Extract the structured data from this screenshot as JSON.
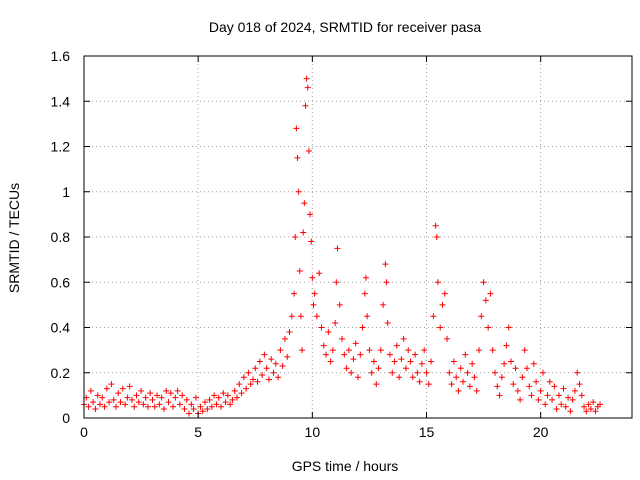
{
  "chart_data": {
    "type": "scatter",
    "title": "Day 018 of 2024, SRMTID for receiver pasa",
    "xlabel": "GPS time / hours",
    "ylabel": "SRMTID / TECUs",
    "xlim": [
      0,
      24
    ],
    "ylim": [
      0,
      1.6
    ],
    "xticks": [
      0,
      5,
      10,
      15,
      20
    ],
    "xtick_labels": [
      "0",
      "5",
      "10",
      "15",
      "20"
    ],
    "yticks": [
      0,
      0.2,
      0.4,
      0.6,
      0.8,
      1,
      1.2,
      1.4,
      1.6
    ],
    "ytick_labels": [
      "0",
      "0.2",
      "0.4",
      "0.6",
      "0.8",
      "1",
      "1.2",
      "1.4",
      "1.6"
    ],
    "grid": true,
    "marker": "+",
    "color": "#ff0000",
    "series": [
      {
        "name": "SRMTID",
        "points": [
          [
            0.0,
            0.06
          ],
          [
            0.1,
            0.09
          ],
          [
            0.2,
            0.05
          ],
          [
            0.3,
            0.12
          ],
          [
            0.4,
            0.07
          ],
          [
            0.5,
            0.04
          ],
          [
            0.6,
            0.1
          ],
          [
            0.7,
            0.06
          ],
          [
            0.8,
            0.09
          ],
          [
            0.9,
            0.05
          ],
          [
            1.0,
            0.13
          ],
          [
            1.1,
            0.07
          ],
          [
            1.2,
            0.15
          ],
          [
            1.3,
            0.08
          ],
          [
            1.4,
            0.05
          ],
          [
            1.5,
            0.11
          ],
          [
            1.6,
            0.07
          ],
          [
            1.7,
            0.13
          ],
          [
            1.8,
            0.06
          ],
          [
            1.9,
            0.09
          ],
          [
            2.0,
            0.14
          ],
          [
            2.1,
            0.08
          ],
          [
            2.2,
            0.05
          ],
          [
            2.3,
            0.1
          ],
          [
            2.4,
            0.07
          ],
          [
            2.5,
            0.12
          ],
          [
            2.6,
            0.06
          ],
          [
            2.7,
            0.09
          ],
          [
            2.8,
            0.05
          ],
          [
            2.9,
            0.11
          ],
          [
            3.0,
            0.08
          ],
          [
            3.1,
            0.05
          ],
          [
            3.2,
            0.1
          ],
          [
            3.3,
            0.06
          ],
          [
            3.4,
            0.09
          ],
          [
            3.5,
            0.04
          ],
          [
            3.6,
            0.12
          ],
          [
            3.7,
            0.07
          ],
          [
            3.8,
            0.11
          ],
          [
            3.9,
            0.05
          ],
          [
            4.0,
            0.09
          ],
          [
            4.1,
            0.12
          ],
          [
            4.2,
            0.06
          ],
          [
            4.3,
            0.1
          ],
          [
            4.4,
            0.04
          ],
          [
            4.5,
            0.08
          ],
          [
            4.6,
            0.02
          ],
          [
            4.7,
            0.06
          ],
          [
            4.8,
            0.04
          ],
          [
            4.9,
            0.09
          ],
          [
            5.0,
            0.02
          ],
          [
            5.1,
            0.05
          ],
          [
            5.2,
            0.03
          ],
          [
            5.3,
            0.07
          ],
          [
            5.4,
            0.04
          ],
          [
            5.5,
            0.08
          ],
          [
            5.6,
            0.05
          ],
          [
            5.7,
            0.1
          ],
          [
            5.8,
            0.06
          ],
          [
            5.9,
            0.09
          ],
          [
            6.0,
            0.05
          ],
          [
            6.1,
            0.11
          ],
          [
            6.2,
            0.07
          ],
          [
            6.3,
            0.1
          ],
          [
            6.4,
            0.06
          ],
          [
            6.5,
            0.08
          ],
          [
            6.6,
            0.12
          ],
          [
            6.7,
            0.09
          ],
          [
            6.8,
            0.15
          ],
          [
            6.9,
            0.11
          ],
          [
            7.0,
            0.18
          ],
          [
            7.1,
            0.13
          ],
          [
            7.2,
            0.2
          ],
          [
            7.3,
            0.15
          ],
          [
            7.4,
            0.17
          ],
          [
            7.5,
            0.22
          ],
          [
            7.6,
            0.16
          ],
          [
            7.7,
            0.25
          ],
          [
            7.8,
            0.19
          ],
          [
            7.9,
            0.28
          ],
          [
            8.0,
            0.22
          ],
          [
            8.1,
            0.17
          ],
          [
            8.2,
            0.26
          ],
          [
            8.3,
            0.2
          ],
          [
            8.4,
            0.24
          ],
          [
            8.5,
            0.18
          ],
          [
            8.6,
            0.3
          ],
          [
            8.7,
            0.23
          ],
          [
            8.8,
            0.35
          ],
          [
            8.9,
            0.27
          ],
          [
            9.0,
            0.38
          ],
          [
            9.1,
            0.45
          ],
          [
            9.2,
            0.55
          ],
          [
            9.25,
            0.8
          ],
          [
            9.3,
            1.28
          ],
          [
            9.35,
            1.15
          ],
          [
            9.4,
            1.0
          ],
          [
            9.45,
            0.65
          ],
          [
            9.5,
            0.45
          ],
          [
            9.55,
            0.3
          ],
          [
            9.6,
            0.82
          ],
          [
            9.65,
            0.95
          ],
          [
            9.7,
            1.38
          ],
          [
            9.75,
            1.5
          ],
          [
            9.8,
            1.46
          ],
          [
            9.85,
            1.18
          ],
          [
            9.9,
            0.9
          ],
          [
            9.95,
            0.78
          ],
          [
            10.0,
            0.62
          ],
          [
            10.05,
            0.5
          ],
          [
            10.1,
            0.55
          ],
          [
            10.2,
            0.45
          ],
          [
            10.3,
            0.64
          ],
          [
            10.4,
            0.4
          ],
          [
            10.5,
            0.32
          ],
          [
            10.6,
            0.28
          ],
          [
            10.7,
            0.38
          ],
          [
            10.8,
            0.25
          ],
          [
            10.9,
            0.3
          ],
          [
            11.0,
            0.42
          ],
          [
            11.05,
            0.6
          ],
          [
            11.1,
            0.75
          ],
          [
            11.2,
            0.5
          ],
          [
            11.3,
            0.35
          ],
          [
            11.4,
            0.28
          ],
          [
            11.5,
            0.22
          ],
          [
            11.6,
            0.3
          ],
          [
            11.7,
            0.2
          ],
          [
            11.8,
            0.26
          ],
          [
            11.9,
            0.33
          ],
          [
            12.0,
            0.18
          ],
          [
            12.1,
            0.28
          ],
          [
            12.2,
            0.4
          ],
          [
            12.3,
            0.55
          ],
          [
            12.35,
            0.62
          ],
          [
            12.4,
            0.45
          ],
          [
            12.5,
            0.3
          ],
          [
            12.6,
            0.2
          ],
          [
            12.7,
            0.25
          ],
          [
            12.8,
            0.15
          ],
          [
            12.9,
            0.22
          ],
          [
            13.0,
            0.3
          ],
          [
            13.1,
            0.5
          ],
          [
            13.2,
            0.68
          ],
          [
            13.25,
            0.6
          ],
          [
            13.3,
            0.42
          ],
          [
            13.4,
            0.28
          ],
          [
            13.5,
            0.2
          ],
          [
            13.6,
            0.25
          ],
          [
            13.7,
            0.32
          ],
          [
            13.8,
            0.18
          ],
          [
            13.9,
            0.26
          ],
          [
            14.0,
            0.35
          ],
          [
            14.1,
            0.22
          ],
          [
            14.2,
            0.3
          ],
          [
            14.3,
            0.25
          ],
          [
            14.4,
            0.18
          ],
          [
            14.5,
            0.28
          ],
          [
            14.6,
            0.2
          ],
          [
            14.7,
            0.16
          ],
          [
            14.8,
            0.24
          ],
          [
            14.9,
            0.3
          ],
          [
            15.0,
            0.2
          ],
          [
            15.1,
            0.15
          ],
          [
            15.2,
            0.25
          ],
          [
            15.3,
            0.45
          ],
          [
            15.4,
            0.85
          ],
          [
            15.45,
            0.8
          ],
          [
            15.5,
            0.6
          ],
          [
            15.6,
            0.4
          ],
          [
            15.7,
            0.5
          ],
          [
            15.8,
            0.55
          ],
          [
            15.9,
            0.35
          ],
          [
            16.0,
            0.2
          ],
          [
            16.1,
            0.15
          ],
          [
            16.2,
            0.25
          ],
          [
            16.3,
            0.18
          ],
          [
            16.4,
            0.12
          ],
          [
            16.5,
            0.22
          ],
          [
            16.6,
            0.16
          ],
          [
            16.7,
            0.28
          ],
          [
            16.8,
            0.2
          ],
          [
            16.9,
            0.14
          ],
          [
            17.0,
            0.24
          ],
          [
            17.1,
            0.18
          ],
          [
            17.2,
            0.12
          ],
          [
            17.3,
            0.3
          ],
          [
            17.4,
            0.45
          ],
          [
            17.5,
            0.6
          ],
          [
            17.6,
            0.52
          ],
          [
            17.7,
            0.4
          ],
          [
            17.8,
            0.55
          ],
          [
            17.9,
            0.3
          ],
          [
            18.0,
            0.2
          ],
          [
            18.1,
            0.14
          ],
          [
            18.2,
            0.1
          ],
          [
            18.3,
            0.18
          ],
          [
            18.4,
            0.24
          ],
          [
            18.5,
            0.32
          ],
          [
            18.6,
            0.4
          ],
          [
            18.7,
            0.25
          ],
          [
            18.8,
            0.15
          ],
          [
            18.9,
            0.22
          ],
          [
            19.0,
            0.12
          ],
          [
            19.1,
            0.08
          ],
          [
            19.2,
            0.18
          ],
          [
            19.3,
            0.3
          ],
          [
            19.4,
            0.22
          ],
          [
            19.5,
            0.14
          ],
          [
            19.6,
            0.1
          ],
          [
            19.7,
            0.24
          ],
          [
            19.8,
            0.16
          ],
          [
            19.9,
            0.08
          ],
          [
            20.0,
            0.12
          ],
          [
            20.1,
            0.2
          ],
          [
            20.2,
            0.06
          ],
          [
            20.3,
            0.1
          ],
          [
            20.4,
            0.16
          ],
          [
            20.5,
            0.08
          ],
          [
            20.6,
            0.14
          ],
          [
            20.7,
            0.04
          ],
          [
            20.8,
            0.1
          ],
          [
            20.9,
            0.06
          ],
          [
            21.0,
            0.13
          ],
          [
            21.1,
            0.05
          ],
          [
            21.2,
            0.09
          ],
          [
            21.3,
            0.03
          ],
          [
            21.4,
            0.08
          ],
          [
            21.5,
            0.12
          ],
          [
            21.6,
            0.2
          ],
          [
            21.7,
            0.15
          ],
          [
            21.8,
            0.1
          ],
          [
            21.9,
            0.05
          ],
          [
            22.0,
            0.03
          ],
          [
            22.1,
            0.06
          ],
          [
            22.2,
            0.04
          ],
          [
            22.3,
            0.07
          ],
          [
            22.4,
            0.03
          ],
          [
            22.5,
            0.05
          ],
          [
            22.6,
            0.06
          ]
        ]
      }
    ]
  }
}
